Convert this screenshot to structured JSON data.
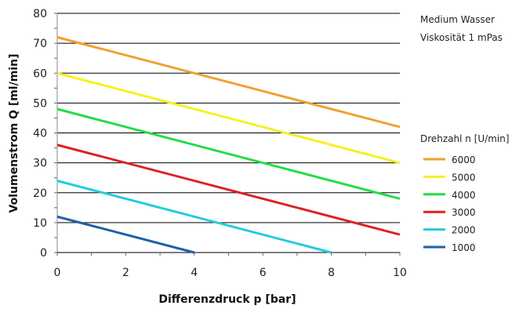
{
  "chart_data": {
    "type": "line",
    "xlabel": "Differenzdruck p [bar]",
    "ylabel": "Volumenstrom Q [ml/min]",
    "xlim": [
      0,
      10
    ],
    "ylim": [
      0,
      80
    ],
    "x_ticks": [
      "0",
      "2",
      "4",
      "6",
      "8",
      "10"
    ],
    "y_ticks": [
      "0",
      "10",
      "20",
      "30",
      "40",
      "50",
      "60",
      "70",
      "80"
    ],
    "grid": "horizontal",
    "notes": [
      "Medium Wasser",
      "Viskosität 1 mPas"
    ],
    "legend_title": "Drehzahl n [U/min]",
    "legend_position": "right",
    "series": [
      {
        "name": "6000",
        "color": "#F0A030",
        "x": [
          0,
          10
        ],
        "y": [
          72,
          42
        ]
      },
      {
        "name": "5000",
        "color": "#F8F020",
        "x": [
          0,
          10
        ],
        "y": [
          60,
          30
        ]
      },
      {
        "name": "4000",
        "color": "#22DD44",
        "x": [
          0,
          10
        ],
        "y": [
          48,
          18
        ]
      },
      {
        "name": "3000",
        "color": "#DD2222",
        "x": [
          0,
          10
        ],
        "y": [
          36,
          6
        ]
      },
      {
        "name": "2000",
        "color": "#22CCDD",
        "x": [
          0,
          8
        ],
        "y": [
          24,
          0
        ]
      },
      {
        "name": "1000",
        "color": "#1F5FA8",
        "x": [
          0,
          4
        ],
        "y": [
          12,
          0
        ]
      }
    ]
  }
}
